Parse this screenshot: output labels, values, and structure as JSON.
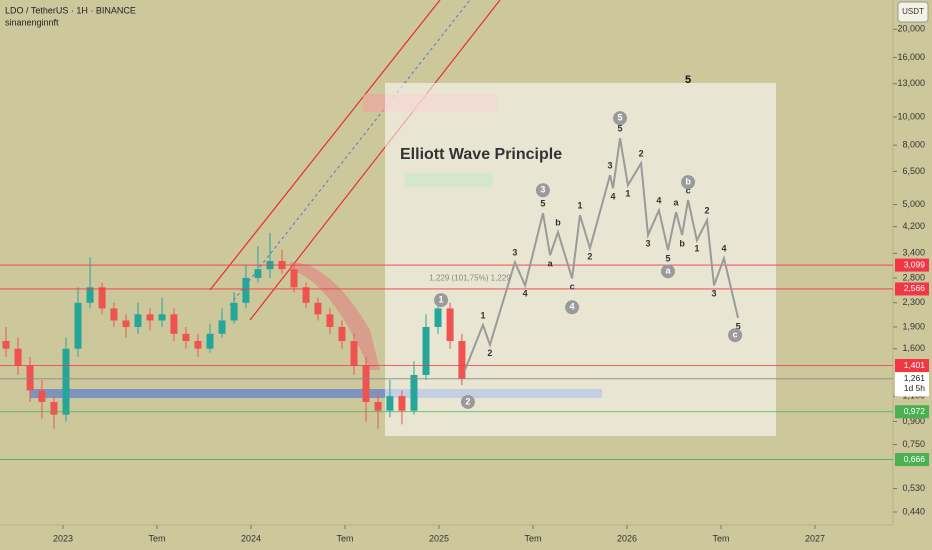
{
  "chart_data": {
    "type": "candlestick",
    "title": "LDO / TetherUS · 1H · BINANCE",
    "subtitle": "sinanenginnft",
    "currency": "USDT",
    "log_scale": true,
    "up_color": "#26a69a",
    "down_color": "#ef5350",
    "x": [
      2022.697,
      2022.761,
      2022.825,
      2022.888,
      2022.952,
      2023.016,
      2023.08,
      2023.144,
      2023.208,
      2023.271,
      2023.335,
      2023.399,
      2023.463,
      2023.527,
      2023.59,
      2023.654,
      2023.718,
      2023.782,
      2023.846,
      2023.91,
      2023.973,
      2024.037,
      2024.101,
      2024.165,
      2024.229,
      2024.293,
      2024.356,
      2024.42,
      2024.484,
      2024.548,
      2024.612,
      2024.676,
      2024.739,
      2024.803,
      2024.867,
      2024.931,
      2024.995,
      2025.059,
      2025.122
    ],
    "open": [
      1.7,
      1.6,
      1.4,
      1.15,
      1.05,
      0.95,
      1.6,
      2.3,
      2.6,
      2.2,
      2.0,
      1.9,
      2.1,
      2.0,
      2.1,
      1.8,
      1.7,
      1.6,
      1.8,
      2.0,
      2.3,
      2.8,
      3.0,
      3.2,
      3.0,
      2.6,
      2.3,
      2.1,
      1.9,
      1.7,
      1.4,
      1.05,
      0.98,
      1.1,
      0.98,
      1.3,
      1.9,
      2.2,
      1.7
    ],
    "high": [
      1.9,
      1.75,
      1.5,
      1.25,
      1.1,
      1.75,
      2.6,
      3.3,
      2.7,
      2.3,
      2.1,
      2.3,
      2.2,
      2.4,
      2.2,
      1.9,
      1.8,
      1.95,
      2.2,
      2.5,
      3.1,
      3.6,
      4.0,
      3.5,
      3.1,
      2.7,
      2.4,
      2.2,
      2.0,
      1.8,
      1.5,
      1.15,
      1.25,
      1.15,
      1.45,
      2.1,
      2.4,
      2.3,
      1.8
    ],
    "low": [
      1.5,
      1.3,
      1.05,
      0.92,
      0.85,
      0.9,
      1.5,
      2.2,
      2.1,
      1.9,
      1.75,
      1.8,
      1.85,
      1.9,
      1.7,
      1.6,
      1.5,
      1.55,
      1.75,
      1.95,
      2.2,
      2.7,
      2.8,
      2.9,
      2.5,
      2.2,
      2.0,
      1.8,
      1.6,
      1.3,
      0.9,
      0.85,
      0.93,
      0.88,
      0.95,
      1.25,
      1.8,
      1.6,
      1.2
    ],
    "close": [
      1.6,
      1.4,
      1.15,
      1.05,
      0.95,
      1.6,
      2.3,
      2.6,
      2.2,
      2.0,
      1.9,
      2.1,
      2.0,
      2.1,
      1.8,
      1.7,
      1.6,
      1.8,
      2.0,
      2.3,
      2.8,
      3.0,
      3.2,
      3.0,
      2.6,
      2.3,
      2.1,
      1.9,
      1.7,
      1.4,
      1.05,
      0.98,
      1.1,
      0.98,
      1.3,
      1.9,
      2.2,
      1.7,
      1.26
    ],
    "xlim": [
      2022.665,
      2027.415
    ],
    "ylim": [
      0.397,
      25.2
    ],
    "xticks": [
      2023,
      {
        "value": 2023.5,
        "label": "Tem"
      },
      2024,
      {
        "value": 2024.5,
        "label": "Tem"
      },
      2025,
      {
        "value": 2025.5,
        "label": "Tem"
      },
      2026,
      {
        "value": 2026.5,
        "label": "Tem"
      },
      2027
    ],
    "yticks": [
      {
        "value": 20,
        "label": "20,000"
      },
      {
        "value": 16,
        "label": "16,000"
      },
      {
        "value": 13,
        "label": "13,000"
      },
      {
        "value": 10,
        "label": "10,000"
      },
      {
        "value": 8,
        "label": "8,000"
      },
      {
        "value": 6.5,
        "label": "6,500"
      },
      {
        "value": 5,
        "label": "5,000"
      },
      {
        "value": 4.2,
        "label": "4,200"
      },
      {
        "value": 3.4,
        "label": "3,400"
      },
      {
        "value": 2.8,
        "label": "2,800"
      },
      {
        "value": 2.3,
        "label": "2,300"
      },
      {
        "value": 1.9,
        "label": "1,900"
      },
      {
        "value": 1.6,
        "label": "1,600"
      },
      {
        "value": 1.1,
        "label": "1,100"
      },
      {
        "value": 0.9,
        "label": "0,900"
      },
      {
        "value": 0.75,
        "label": "0,750"
      },
      {
        "value": 0.53,
        "label": "0,530"
      },
      {
        "value": 0.44,
        "label": "0,440"
      }
    ],
    "price_labels": [
      {
        "value": 3.099,
        "label": "3,099",
        "color": "#f23645"
      },
      {
        "value": 2.566,
        "label": "2,566",
        "color": "#f23645"
      },
      {
        "value": 1.401,
        "label": "1,401",
        "color": "#f23645"
      },
      {
        "value": 1.261,
        "label": "1,261",
        "sublabel": "1d 5h",
        "color": "#ffffff"
      },
      {
        "value": 0.972,
        "label": "0,972",
        "color": "#4caf50"
      },
      {
        "value": 0.666,
        "label": "0,666",
        "color": "#4caf50"
      }
    ],
    "box_title": "Elliott Wave Principle",
    "waves": {
      "x": [
        2025.138,
        2025.234,
        2025.271,
        2025.404,
        2025.458,
        2025.553,
        2025.591,
        2025.633,
        2025.708,
        2025.75,
        2025.803,
        2025.91,
        2025.926,
        2025.963,
        2026.005,
        2026.075,
        2026.112,
        2026.17,
        2026.218,
        2026.261,
        2026.293,
        2026.325,
        2026.372,
        2026.426,
        2026.463,
        2026.516,
        2026.591
      ],
      "values": [
        1.35,
        1.93,
        1.65,
        3.17,
        2.64,
        4.67,
        3.35,
        4.02,
        2.79,
        4.6,
        3.54,
        6.31,
        5.69,
        8.45,
        5.83,
        6.93,
        3.93,
        4.78,
        3.49,
        4.71,
        3.93,
        5.18,
        3.77,
        4.42,
        2.64,
        3.27,
        2.04
      ],
      "labels": [
        null,
        "1",
        "2",
        "3",
        "4",
        "5",
        "a",
        "b",
        "c",
        "1",
        "2",
        "3",
        "4",
        "5",
        "1",
        "2",
        "3",
        "4",
        "5",
        "a",
        "b",
        "c",
        "1",
        "2",
        "3",
        "4",
        "5"
      ]
    },
    "wave_circles": [
      {
        "text": "1",
        "x": 2025.011,
        "y": 2.35
      },
      {
        "text": "2",
        "x": 2025.154,
        "y": 1.05
      },
      {
        "text": "3",
        "x": 2025.553,
        "y": 5.6
      },
      {
        "text": "4",
        "x": 2025.708,
        "y": 2.22
      },
      {
        "text": "5",
        "x": 2025.963,
        "y": 9.9
      },
      {
        "text": "a",
        "x": 2026.218,
        "y": 2.95
      },
      {
        "text": "b",
        "x": 2026.325,
        "y": 5.97
      },
      {
        "text": "c",
        "x": 2026.575,
        "y": 1.78
      }
    ],
    "annotations": [
      {
        "text": "5",
        "x": 2026.325,
        "y": 13.4
      },
      {
        "text": "1,229 (101,75%) 1,229",
        "x": 2025.165,
        "y": 2.79
      }
    ]
  }
}
